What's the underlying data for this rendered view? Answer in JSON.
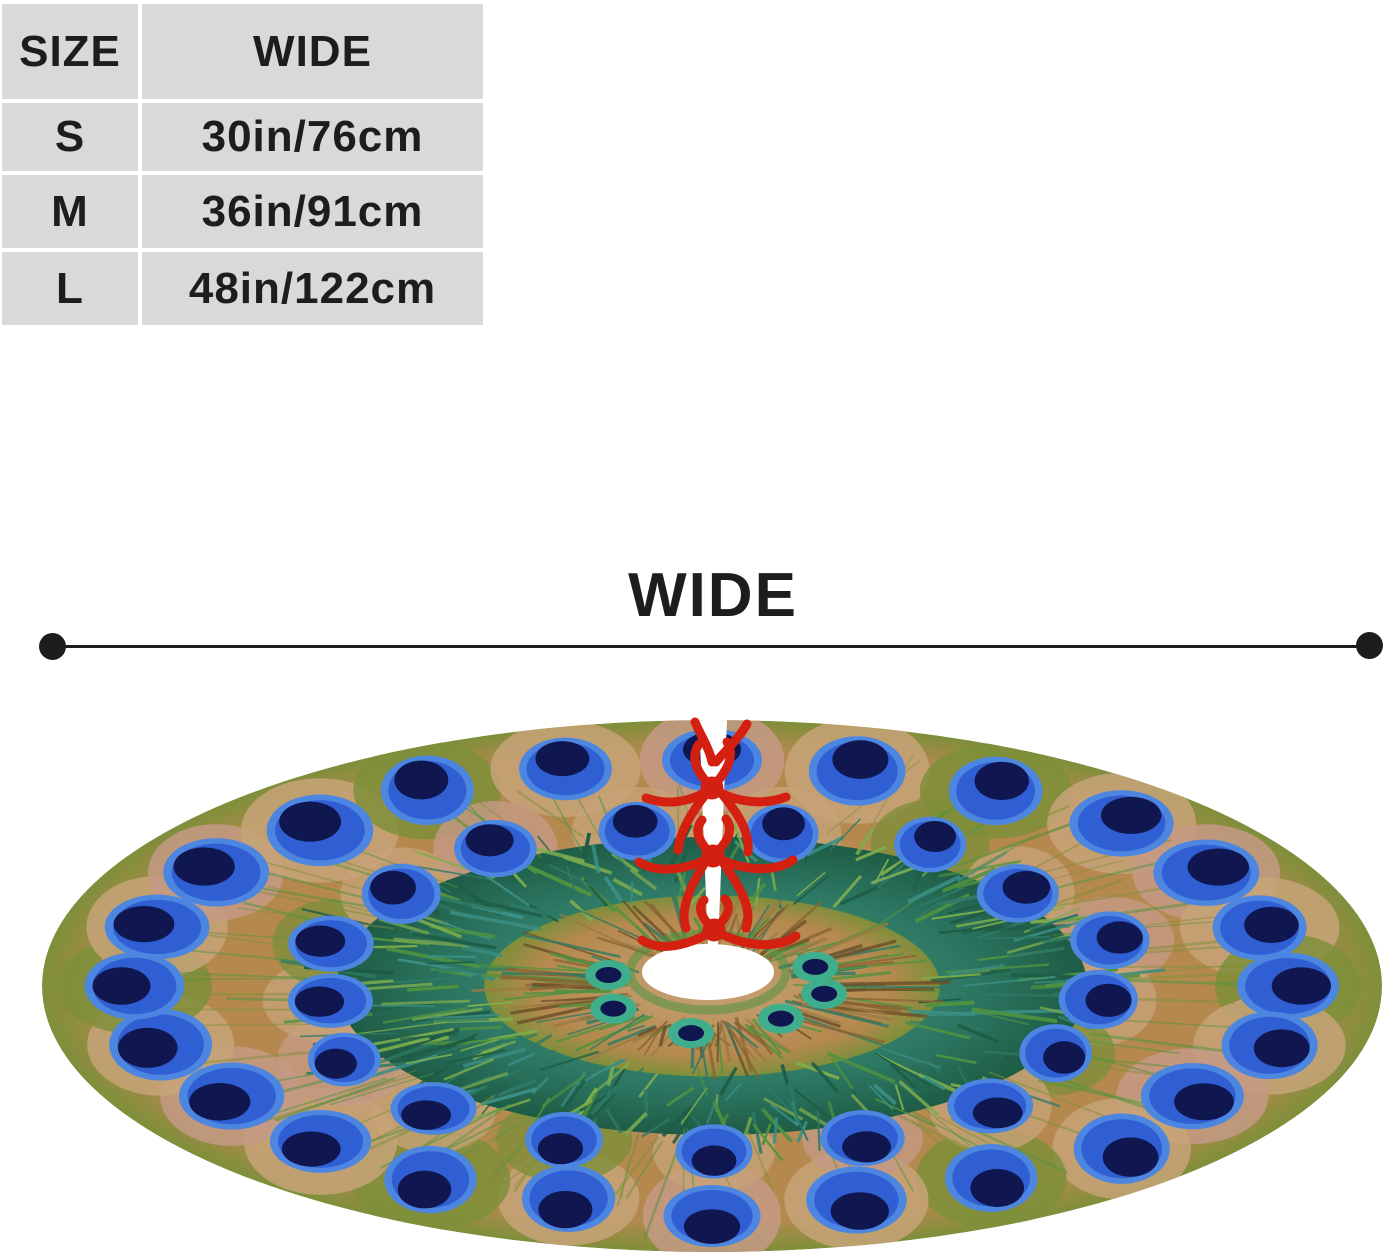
{
  "size_table": {
    "headers": [
      "SIZE",
      "WIDE"
    ],
    "rows": [
      {
        "size": "S",
        "wide": "30in/76cm"
      },
      {
        "size": "M",
        "wide": "36in/91cm"
      },
      {
        "size": "L",
        "wide": "48in/122cm"
      }
    ]
  },
  "measurement": {
    "label": "WIDE"
  },
  "image": {
    "alt": "Round peacock-feather Christmas tree skirt with white center hole, back slit and three red ribbon ties"
  },
  "colors": {
    "table_cell_bg": "#d9d9d9",
    "text": "#1d1d1d",
    "ribbon_red": "#d32011",
    "eye_blue": "#2f5fd3",
    "eye_blue_light": "#4d86e0",
    "eye_navy": "#10164f",
    "fluff_teal": "#2e7a66",
    "fluff_green": "#4f9340",
    "fluff_dark": "#1e5c45",
    "fluff_light": "#7fae4e",
    "teal_ring": "#3fae8c",
    "tan": "#b5894e",
    "tan_light": "#c7a378",
    "pink_tan": "#c49a85",
    "olive": "#7e8f3a",
    "brown": "#8a6534",
    "hole_white": "#ffffff"
  }
}
